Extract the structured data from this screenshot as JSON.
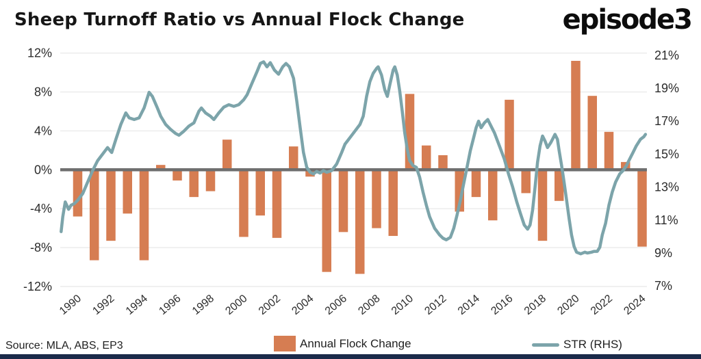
{
  "header": {
    "title": "Sheep Turnoff Ratio vs Annual Flock Change",
    "logo": "episode3"
  },
  "footer": {
    "source": "Source: MLA, ABS, EP3"
  },
  "legend": {
    "position": "bottom",
    "items": [
      {
        "label": "Annual Flock Change",
        "type": "bar",
        "color": "#D67D52"
      },
      {
        "label": "STR (RHS)",
        "type": "line",
        "color": "#7CA4AA"
      }
    ]
  },
  "colors": {
    "bar": "#D67D52",
    "line": "#7CA4AA",
    "zero_line": "#6F6F6F",
    "grid": "#ECECEC",
    "footer_bar": "#1B2A4A",
    "axis_text": "#2B2B2B"
  },
  "chart_data": {
    "type": "bar+line-dual-axis",
    "title": "Sheep Turnoff Ratio vs Annual Flock Change",
    "grid": "horizontal-on",
    "x_axis": {
      "tick_years": [
        1990,
        1992,
        1994,
        1996,
        1998,
        2000,
        2002,
        2004,
        2006,
        2008,
        2010,
        2012,
        2014,
        2016,
        2018,
        2020,
        2022,
        2024
      ],
      "label_rotation_deg": -40
    },
    "left_axis": {
      "ticks": [
        "12%",
        "8%",
        "4%",
        "0%",
        "-4%",
        "-8%",
        "-12%"
      ],
      "tick_values": [
        12,
        8,
        4,
        0,
        -4,
        -8,
        -12
      ],
      "range": [
        -12.5,
        12.6
      ]
    },
    "right_axis": {
      "ticks": [
        "21%",
        "19%",
        "17%",
        "15%",
        "13%",
        "11%",
        "9%",
        "7%"
      ],
      "tick_values": [
        21,
        19,
        17,
        15,
        13,
        11,
        9,
        7
      ],
      "range": [
        6.9,
        21.3
      ]
    },
    "categories": [
      1990,
      1991,
      1992,
      1993,
      1994,
      1995,
      1996,
      1997,
      1998,
      1999,
      2000,
      2001,
      2002,
      2003,
      2004,
      2005,
      2006,
      2007,
      2008,
      2009,
      2010,
      2011,
      2012,
      2013,
      2014,
      2015,
      2016,
      2017,
      2018,
      2019,
      2020,
      2021,
      2022,
      2023,
      2024
    ],
    "series": [
      {
        "name": "Annual Flock Change",
        "type": "bar",
        "axis": "left",
        "unit": "%",
        "values": [
          -4.8,
          -9.3,
          -7.3,
          -4.5,
          -9.3,
          0.5,
          -1.1,
          -2.8,
          -2.2,
          3.1,
          -6.9,
          -4.7,
          -7.0,
          2.4,
          -0.7,
          -10.5,
          -6.4,
          -10.7,
          -6.0,
          -6.8,
          7.8,
          2.5,
          1.5,
          -4.3,
          -2.8,
          -5.2,
          7.2,
          -2.4,
          -7.3,
          -3.2,
          11.2,
          7.6,
          3.9,
          0.8,
          -7.9
        ]
      },
      {
        "name": "STR (RHS)",
        "type": "line",
        "axis": "right",
        "unit": "%",
        "points": [
          [
            1989.0,
            10.3
          ],
          [
            1989.1,
            11.2
          ],
          [
            1989.25,
            12.1
          ],
          [
            1989.45,
            11.65
          ],
          [
            1989.6,
            11.9
          ],
          [
            1989.8,
            12.0
          ],
          [
            1990.0,
            12.2
          ],
          [
            1990.3,
            12.6
          ],
          [
            1990.6,
            13.3
          ],
          [
            1990.9,
            14.0
          ],
          [
            1991.2,
            14.6
          ],
          [
            1991.5,
            15.0
          ],
          [
            1991.8,
            15.4
          ],
          [
            1992.05,
            15.1
          ],
          [
            1992.3,
            15.9
          ],
          [
            1992.6,
            16.8
          ],
          [
            1992.9,
            17.5
          ],
          [
            1993.1,
            17.2
          ],
          [
            1993.4,
            17.1
          ],
          [
            1993.7,
            17.2
          ],
          [
            1994.0,
            17.8
          ],
          [
            1994.3,
            18.75
          ],
          [
            1994.5,
            18.5
          ],
          [
            1994.8,
            17.8
          ],
          [
            1995.0,
            17.3
          ],
          [
            1995.3,
            16.8
          ],
          [
            1995.6,
            16.5
          ],
          [
            1995.9,
            16.25
          ],
          [
            1996.1,
            16.15
          ],
          [
            1996.4,
            16.4
          ],
          [
            1996.7,
            16.7
          ],
          [
            1997.0,
            16.9
          ],
          [
            1997.3,
            17.6
          ],
          [
            1997.45,
            17.8
          ],
          [
            1997.7,
            17.5
          ],
          [
            1998.0,
            17.3
          ],
          [
            1998.2,
            17.1
          ],
          [
            1998.5,
            17.5
          ],
          [
            1998.8,
            17.85
          ],
          [
            1999.1,
            18.0
          ],
          [
            1999.4,
            17.9
          ],
          [
            1999.7,
            18.0
          ],
          [
            2000.0,
            18.3
          ],
          [
            2000.2,
            18.6
          ],
          [
            2000.5,
            19.3
          ],
          [
            2000.8,
            20.0
          ],
          [
            2001.0,
            20.5
          ],
          [
            2001.2,
            20.6
          ],
          [
            2001.4,
            20.3
          ],
          [
            2001.6,
            20.55
          ],
          [
            2001.85,
            20.1
          ],
          [
            2002.1,
            19.85
          ],
          [
            2002.35,
            20.3
          ],
          [
            2002.55,
            20.5
          ],
          [
            2002.75,
            20.3
          ],
          [
            2003.0,
            19.6
          ],
          [
            2003.2,
            18.2
          ],
          [
            2003.4,
            16.6
          ],
          [
            2003.6,
            15.1
          ],
          [
            2003.8,
            14.2
          ],
          [
            2004.0,
            13.9
          ],
          [
            2004.2,
            13.8
          ],
          [
            2004.4,
            13.95
          ],
          [
            2004.6,
            13.85
          ],
          [
            2004.8,
            14.0
          ],
          [
            2005.0,
            13.9
          ],
          [
            2005.3,
            14.0
          ],
          [
            2005.6,
            14.4
          ],
          [
            2005.9,
            15.1
          ],
          [
            2006.1,
            15.6
          ],
          [
            2006.4,
            16.0
          ],
          [
            2006.7,
            16.4
          ],
          [
            2007.0,
            16.8
          ],
          [
            2007.2,
            17.3
          ],
          [
            2007.4,
            18.5
          ],
          [
            2007.6,
            19.4
          ],
          [
            2007.8,
            19.9
          ],
          [
            2008.0,
            20.2
          ],
          [
            2008.1,
            20.3
          ],
          [
            2008.3,
            19.8
          ],
          [
            2008.5,
            18.9
          ],
          [
            2008.65,
            18.5
          ],
          [
            2008.8,
            19.2
          ],
          [
            2009.0,
            20.1
          ],
          [
            2009.1,
            20.3
          ],
          [
            2009.25,
            19.8
          ],
          [
            2009.4,
            18.8
          ],
          [
            2009.55,
            17.6
          ],
          [
            2009.7,
            16.3
          ],
          [
            2009.85,
            15.3
          ],
          [
            2010.0,
            14.6
          ],
          [
            2010.2,
            14.3
          ],
          [
            2010.4,
            14.2
          ],
          [
            2010.6,
            13.6
          ],
          [
            2010.8,
            12.7
          ],
          [
            2011.0,
            11.9
          ],
          [
            2011.2,
            11.2
          ],
          [
            2011.5,
            10.5
          ],
          [
            2011.8,
            10.1
          ],
          [
            2012.0,
            9.9
          ],
          [
            2012.2,
            9.8
          ],
          [
            2012.45,
            9.95
          ],
          [
            2012.65,
            10.5
          ],
          [
            2012.85,
            11.3
          ],
          [
            2013.05,
            12.2
          ],
          [
            2013.25,
            13.2
          ],
          [
            2013.45,
            14.2
          ],
          [
            2013.65,
            15.2
          ],
          [
            2013.85,
            16.0
          ],
          [
            2014.0,
            16.6
          ],
          [
            2014.15,
            17.0
          ],
          [
            2014.3,
            16.6
          ],
          [
            2014.5,
            16.9
          ],
          [
            2014.7,
            17.1
          ],
          [
            2014.9,
            16.7
          ],
          [
            2015.1,
            16.3
          ],
          [
            2015.4,
            15.5
          ],
          [
            2015.7,
            14.7
          ],
          [
            2015.95,
            13.8
          ],
          [
            2016.2,
            13.0
          ],
          [
            2016.45,
            12.1
          ],
          [
            2016.7,
            11.3
          ],
          [
            2016.9,
            10.7
          ],
          [
            2017.1,
            10.45
          ],
          [
            2017.25,
            10.7
          ],
          [
            2017.4,
            11.6
          ],
          [
            2017.55,
            13.0
          ],
          [
            2017.7,
            14.5
          ],
          [
            2017.85,
            15.5
          ],
          [
            2018.0,
            16.1
          ],
          [
            2018.15,
            15.8
          ],
          [
            2018.3,
            15.4
          ],
          [
            2018.5,
            15.7
          ],
          [
            2018.65,
            16.0
          ],
          [
            2018.75,
            16.2
          ],
          [
            2018.9,
            15.9
          ],
          [
            2019.0,
            15.2
          ],
          [
            2019.15,
            14.3
          ],
          [
            2019.3,
            13.3
          ],
          [
            2019.45,
            12.2
          ],
          [
            2019.6,
            11.1
          ],
          [
            2019.75,
            10.1
          ],
          [
            2019.9,
            9.4
          ],
          [
            2020.05,
            9.05
          ],
          [
            2020.3,
            8.95
          ],
          [
            2020.55,
            9.05
          ],
          [
            2020.7,
            9.0
          ],
          [
            2020.95,
            9.05
          ],
          [
            2021.1,
            9.1
          ],
          [
            2021.3,
            9.1
          ],
          [
            2021.45,
            9.35
          ],
          [
            2021.6,
            10.1
          ],
          [
            2021.8,
            10.8
          ],
          [
            2022.0,
            11.9
          ],
          [
            2022.2,
            12.7
          ],
          [
            2022.4,
            13.3
          ],
          [
            2022.65,
            13.8
          ],
          [
            2022.85,
            14.0
          ],
          [
            2023.05,
            14.3
          ],
          [
            2023.25,
            14.7
          ],
          [
            2023.45,
            15.1
          ],
          [
            2023.65,
            15.5
          ],
          [
            2023.9,
            15.9
          ],
          [
            2024.1,
            16.05
          ],
          [
            2024.2,
            16.2
          ]
        ]
      }
    ]
  }
}
